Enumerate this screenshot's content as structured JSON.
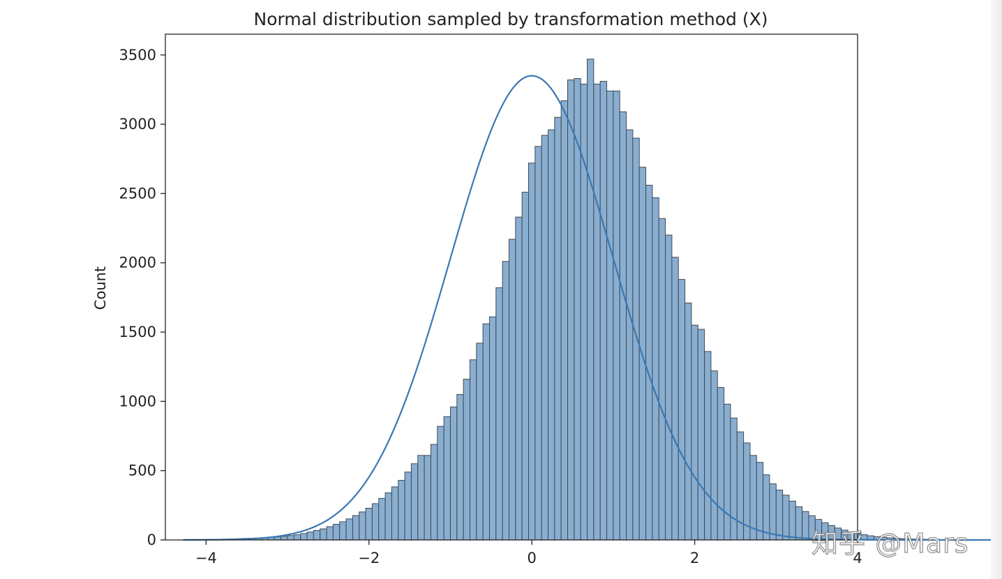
{
  "chart_data": {
    "type": "bar",
    "subtype": "histogram_with_kde",
    "title": "Normal distribution sampled by transformation method (X)",
    "xlabel": "",
    "ylabel": "Count",
    "xlim": [
      -4.5,
      4.0
    ],
    "ylim": [
      0,
      3650
    ],
    "xticks": [
      -4,
      -2,
      0,
      2,
      4
    ],
    "xtick_labels": [
      "−4",
      "−2",
      "0",
      "2",
      "4"
    ],
    "yticks": [
      0,
      500,
      1000,
      1500,
      2000,
      2500,
      3000,
      3500
    ],
    "ytick_labels": [
      "0",
      "500",
      "1000",
      "1500",
      "2000",
      "2500",
      "3000",
      "3500"
    ],
    "grid": false,
    "bin_width": 0.08,
    "bins_start": -4.28,
    "counts": [
      2,
      2,
      3,
      3,
      4,
      5,
      6,
      7,
      9,
      11,
      12,
      14,
      17,
      19,
      22,
      26,
      31,
      37,
      46,
      57,
      68,
      80,
      96,
      113,
      131,
      152,
      176,
      202,
      229,
      262,
      300,
      340,
      383,
      430,
      490,
      550,
      610,
      610,
      690,
      820,
      890,
      960,
      1050,
      1160,
      1300,
      1420,
      1560,
      1610,
      1820,
      2010,
      2170,
      2330,
      2510,
      2720,
      2840,
      2920,
      2960,
      3050,
      3170,
      3320,
      3330,
      3290,
      3470,
      3290,
      3310,
      3240,
      3240,
      3090,
      2960,
      2900,
      2690,
      2560,
      2470,
      2320,
      2200,
      2040,
      1880,
      1710,
      1550,
      1520,
      1360,
      1220,
      1100,
      980,
      880,
      780,
      700,
      610,
      560,
      470,
      405,
      360,
      323,
      280,
      240,
      205,
      175,
      148,
      124,
      104,
      86,
      71,
      58,
      47,
      38,
      30,
      24,
      19,
      15,
      12,
      9,
      7,
      6,
      5,
      4,
      3,
      3,
      2,
      2,
      2,
      2,
      1,
      1,
      1
    ],
    "kde": {
      "mean": 0.0,
      "std": 1.0,
      "n": 100000,
      "peak": 3350
    },
    "colors": {
      "bar_fill": "#8aaed0",
      "bar_edge": "#3d4a57",
      "kde_line": "#3a78b3",
      "axis": "#222222",
      "text": "#222222"
    }
  },
  "watermark": {
    "text": "知乎 @Mars"
  }
}
